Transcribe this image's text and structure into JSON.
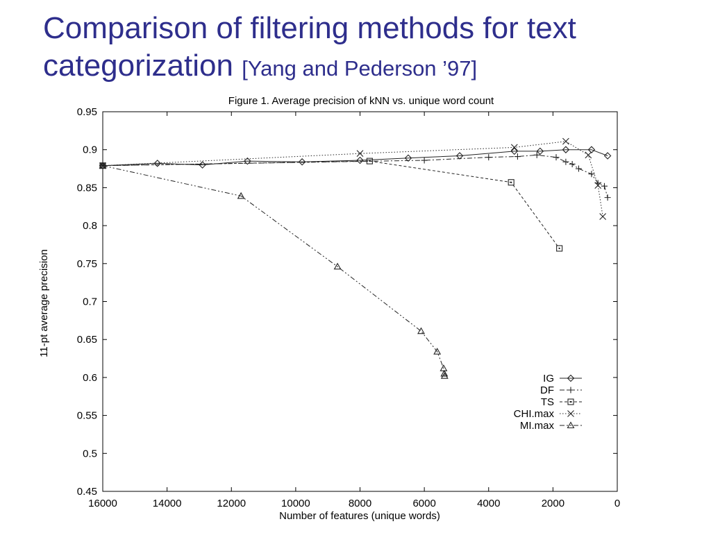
{
  "slide": {
    "title_line1": "Comparison of filtering methods for text",
    "title_line2": "categorization",
    "citation": "[Yang and Pederson ’97]",
    "title_color": "#2e2e8c"
  },
  "chart_data": {
    "type": "line",
    "title": "Figure 1. Average precision of kNN vs. unique word count",
    "xlabel": "Number of features (unique words)",
    "ylabel": "11-pt average precision",
    "xlim": [
      16000,
      0
    ],
    "ylim": [
      0.45,
      0.95
    ],
    "x_reversed": true,
    "grid": false,
    "legend_position": "bottom-right",
    "x_ticks": [
      16000,
      14000,
      12000,
      10000,
      8000,
      6000,
      4000,
      2000,
      0
    ],
    "x_tick_labels": [
      "16000",
      "14000",
      "12000",
      "10000",
      "8000",
      "6000",
      "4000",
      "2000",
      "0"
    ],
    "y_ticks": [
      0.95,
      0.9,
      0.85,
      0.8,
      0.75,
      0.7,
      0.65,
      0.6,
      0.55,
      0.5,
      0.45
    ],
    "y_tick_labels": [
      "0.95",
      "0.9",
      "0.85",
      "0.8",
      "0.75",
      "0.7",
      "0.65",
      "0.6",
      "0.55",
      "0.5",
      "0.45"
    ],
    "series": [
      {
        "name": "IG",
        "marker": "diamond",
        "dash": "solid",
        "x": [
          16000,
          14300,
          12900,
          11500,
          9800,
          8000,
          6500,
          4900,
          3200,
          2400,
          1600,
          800,
          300
        ],
        "y": [
          0.879,
          0.882,
          0.88,
          0.885,
          0.884,
          0.886,
          0.889,
          0.892,
          0.898,
          0.898,
          0.9,
          0.9,
          0.892
        ]
      },
      {
        "name": "DF",
        "marker": "plus",
        "dash": "dashdot",
        "x": [
          16000,
          6000,
          4000,
          3100,
          2500,
          1900,
          1600,
          1400,
          1200,
          800,
          600,
          400,
          300
        ],
        "y": [
          0.879,
          0.886,
          0.89,
          0.891,
          0.893,
          0.89,
          0.884,
          0.881,
          0.875,
          0.868,
          0.856,
          0.852,
          0.837
        ]
      },
      {
        "name": "TS",
        "marker": "square",
        "dash": "dashed",
        "x": [
          16000,
          7700,
          3300,
          1800
        ],
        "y": [
          0.879,
          0.885,
          0.857,
          0.77
        ]
      },
      {
        "name": "CHI.max",
        "marker": "cross",
        "dash": "dotted",
        "x": [
          16000,
          8000,
          3200,
          1600,
          900,
          600,
          450
        ],
        "y": [
          0.879,
          0.895,
          0.903,
          0.911,
          0.893,
          0.853,
          0.812
        ]
      },
      {
        "name": "MI.max",
        "marker": "triangle",
        "dash": "dashdotdot",
        "x": [
          16000,
          11700,
          8700,
          6100,
          5600,
          5400,
          5380,
          5370
        ],
        "y": [
          0.879,
          0.839,
          0.746,
          0.661,
          0.634,
          0.612,
          0.605,
          0.602
        ]
      }
    ]
  }
}
